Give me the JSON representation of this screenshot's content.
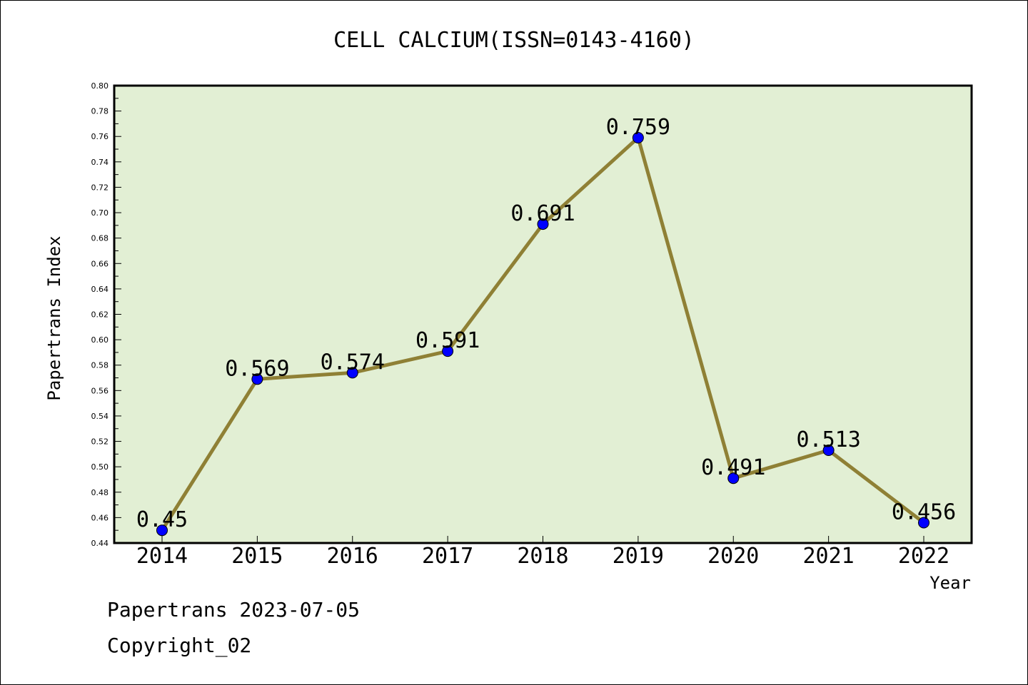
{
  "chart_data": {
    "type": "line",
    "title": "CELL CALCIUM(ISSN=0143-4160)",
    "xlabel": "Year",
    "ylabel": "Papertrans Index",
    "categories": [
      "2014",
      "2015",
      "2016",
      "2017",
      "2018",
      "2019",
      "2020",
      "2021",
      "2022"
    ],
    "values": [
      0.45,
      0.569,
      0.574,
      0.591,
      0.691,
      0.759,
      0.491,
      0.513,
      0.456
    ],
    "data_labels": [
      "0.45",
      "0.569",
      "0.574",
      "0.591",
      "0.691",
      "0.759",
      "0.491",
      "0.513",
      "0.456"
    ],
    "ylim": [
      0.44,
      0.8
    ],
    "yticks": [
      "0.44",
      "0.46",
      "0.48",
      "0.50",
      "0.52",
      "0.54",
      "0.56",
      "0.58",
      "0.60",
      "0.62",
      "0.64",
      "0.66",
      "0.68",
      "0.70",
      "0.72",
      "0.74",
      "0.76",
      "0.78",
      "0.80"
    ],
    "grid": false,
    "colors": {
      "plot_background": "#e2efd4",
      "line": "#8f8035",
      "marker": "#0000ff"
    }
  },
  "footer": {
    "line1": "Papertrans 2023-07-05",
    "line2": "Copyright_02"
  }
}
